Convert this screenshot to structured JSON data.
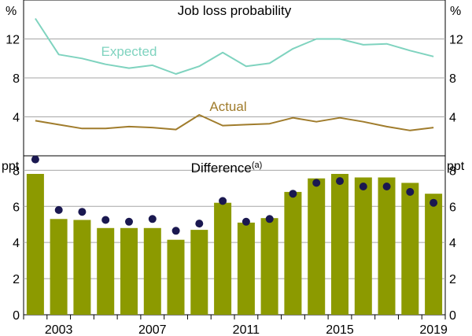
{
  "chart_data": [
    {
      "type": "line",
      "title": "Job loss probability",
      "unit_left": "%",
      "unit_right": "%",
      "x": [
        2002,
        2003,
        2004,
        2005,
        2006,
        2007,
        2008,
        2009,
        2010,
        2011,
        2012,
        2013,
        2014,
        2015,
        2016,
        2017,
        2018,
        2019
      ],
      "ylim": [
        0,
        16
      ],
      "yticks": [
        "4",
        "8",
        "12"
      ],
      "ytick_values": [
        4,
        8,
        12
      ],
      "grid": true,
      "series": [
        {
          "name": "Expected",
          "color": "#7fd3bf",
          "values": [
            14.1,
            10.4,
            10.0,
            9.4,
            9.0,
            9.3,
            8.4,
            9.2,
            10.6,
            9.2,
            9.5,
            11.0,
            12.0,
            12.0,
            11.4,
            11.5,
            10.8,
            10.2
          ]
        },
        {
          "name": "Actual",
          "color": "#a07c2c",
          "values": [
            3.6,
            3.2,
            2.8,
            2.8,
            3.0,
            2.9,
            2.7,
            4.2,
            3.1,
            3.2,
            3.3,
            3.9,
            3.5,
            3.9,
            3.5,
            3.0,
            2.6,
            2.9
          ]
        }
      ]
    },
    {
      "type": "bar",
      "title": "Difference",
      "title_superscript": "(a)",
      "unit_left": "ppt",
      "unit_right": "ppt",
      "categories": [
        2002,
        2003,
        2004,
        2005,
        2006,
        2007,
        2008,
        2009,
        2010,
        2011,
        2012,
        2013,
        2014,
        2015,
        2016,
        2017,
        2018,
        2019
      ],
      "x_tick_labels": [
        "2003",
        "2007",
        "2011",
        "2015",
        "2019"
      ],
      "x_tick_years": [
        2003,
        2007,
        2011,
        2015,
        2019
      ],
      "ylim": [
        0,
        8.8
      ],
      "yticks": [
        "0",
        "2",
        "4",
        "6",
        "8"
      ],
      "ytick_values": [
        0,
        2,
        4,
        6,
        8
      ],
      "grid": true,
      "bar_color": "#8c9a00",
      "dot_color": "#1a1850",
      "bars": [
        7.8,
        5.3,
        5.25,
        4.8,
        4.8,
        4.8,
        4.15,
        4.7,
        6.2,
        5.1,
        5.35,
        6.8,
        7.55,
        7.8,
        7.6,
        7.6,
        7.3,
        6.7
      ],
      "dots": [
        8.6,
        5.8,
        5.7,
        5.25,
        5.15,
        5.3,
        4.65,
        5.05,
        6.3,
        5.15,
        5.3,
        6.7,
        7.3,
        7.4,
        7.1,
        7.1,
        6.8,
        6.2
      ]
    }
  ]
}
